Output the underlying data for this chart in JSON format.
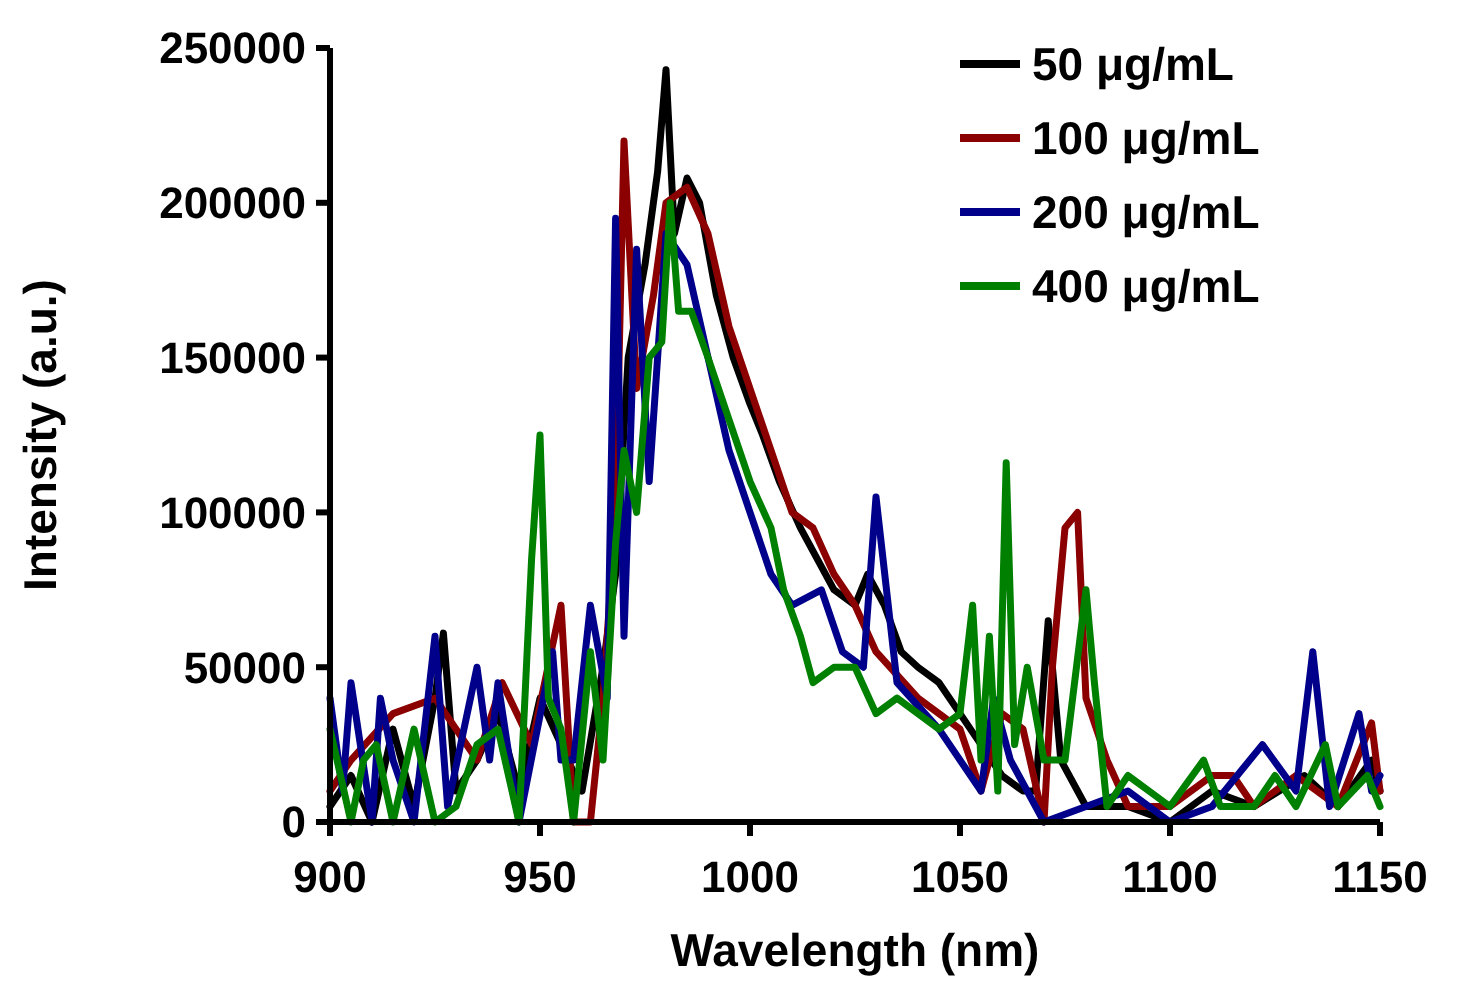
{
  "chart_data": {
    "type": "line",
    "xlabel": "Wavelength (nm)",
    "ylabel": "Intensity (a.u.)",
    "xlim": [
      900,
      1150
    ],
    "xticks": [
      900,
      950,
      1000,
      1050,
      1100,
      1150
    ],
    "ylim": [
      0,
      250000
    ],
    "yticks": [
      0,
      50000,
      100000,
      150000,
      200000,
      250000
    ],
    "legend": "top right",
    "grid": false,
    "marker": "none",
    "line_style": "solid",
    "series": [
      {
        "name": "50 μg/mL",
        "color": "#000000",
        "x": [
          900,
          905,
          910,
          915,
          920,
          925,
          927,
          930,
          935,
          940,
          945,
          950,
          955,
          960,
          965,
          968,
          971,
          975,
          978,
          980,
          982,
          985,
          988,
          992,
          996,
          1000,
          1003,
          1007,
          1012,
          1016,
          1020,
          1025,
          1028,
          1032,
          1036,
          1040,
          1045,
          1050,
          1055,
          1060,
          1065,
          1068,
          1071,
          1074,
          1080,
          1090,
          1100,
          1110,
          1120,
          1132,
          1140,
          1148,
          1150
        ],
        "values": [
          5000,
          15000,
          0,
          30000,
          5000,
          40000,
          61000,
          10000,
          20000,
          35000,
          10000,
          40000,
          25000,
          10000,
          50000,
          80000,
          150000,
          180000,
          210000,
          243000,
          190000,
          208000,
          200000,
          170000,
          150000,
          135000,
          125000,
          110000,
          95000,
          85000,
          75000,
          70000,
          80000,
          70000,
          55000,
          50000,
          45000,
          35000,
          25000,
          15000,
          10000,
          10000,
          65000,
          20000,
          5000,
          5000,
          0,
          10000,
          5000,
          15000,
          5000,
          20000,
          10000
        ]
      },
      {
        "name": "100 μg/mL",
        "color": "#8b0000",
        "x": [
          900,
          905,
          915,
          925,
          935,
          941,
          948,
          955,
          958,
          962,
          965,
          968,
          970,
          973,
          977,
          980,
          985,
          990,
          995,
          1000,
          1005,
          1010,
          1015,
          1020,
          1025,
          1030,
          1040,
          1050,
          1055,
          1060,
          1065,
          1070,
          1072,
          1075,
          1078,
          1080,
          1085,
          1090,
          1100,
          1110,
          1115,
          1120,
          1130,
          1140,
          1148,
          1150
        ],
        "values": [
          10000,
          20000,
          35000,
          40000,
          20000,
          45000,
          25000,
          70000,
          0,
          0,
          40000,
          100000,
          220000,
          140000,
          170000,
          200000,
          205000,
          190000,
          160000,
          140000,
          120000,
          100000,
          95000,
          80000,
          70000,
          55000,
          40000,
          30000,
          10000,
          35000,
          30000,
          0,
          50000,
          95000,
          100000,
          40000,
          20000,
          5000,
          5000,
          15000,
          15000,
          5000,
          15000,
          5000,
          32000,
          10000
        ]
      },
      {
        "name": "200 μg/mL",
        "color": "#00008b",
        "x": [
          900,
          903,
          905,
          910,
          912,
          915,
          920,
          925,
          928,
          935,
          938,
          940,
          945,
          953,
          955,
          958,
          962,
          966,
          968,
          970,
          973,
          976,
          980,
          985,
          990,
          995,
          1000,
          1005,
          1010,
          1017,
          1022,
          1027,
          1030,
          1035,
          1045,
          1055,
          1058,
          1062,
          1070,
          1080,
          1090,
          1100,
          1110,
          1122,
          1130,
          1134,
          1138,
          1145,
          1148,
          1150
        ],
        "values": [
          40000,
          10000,
          45000,
          0,
          40000,
          20000,
          0,
          60000,
          5000,
          50000,
          20000,
          45000,
          0,
          55000,
          20000,
          20000,
          70000,
          40000,
          195000,
          60000,
          185000,
          110000,
          190000,
          180000,
          150000,
          120000,
          100000,
          80000,
          70000,
          75000,
          55000,
          50000,
          105000,
          45000,
          30000,
          10000,
          40000,
          20000,
          0,
          5000,
          10000,
          0,
          5000,
          25000,
          10000,
          55000,
          5000,
          35000,
          10000,
          15000
        ]
      },
      {
        "name": "400 μg/mL",
        "color": "#008000",
        "x": [
          900,
          905,
          908,
          911,
          915,
          920,
          925,
          930,
          935,
          940,
          945,
          948,
          950,
          952,
          955,
          958,
          962,
          965,
          968,
          970,
          973,
          976,
          979,
          981,
          983,
          986,
          990,
          995,
          1000,
          1005,
          1008,
          1012,
          1015,
          1020,
          1025,
          1030,
          1035,
          1040,
          1045,
          1050,
          1053,
          1055,
          1057,
          1059,
          1061,
          1063,
          1066,
          1070,
          1075,
          1080,
          1082,
          1085,
          1090,
          1095,
          1100,
          1108,
          1112,
          1120,
          1125,
          1130,
          1137,
          1140,
          1147,
          1150
        ],
        "values": [
          30000,
          0,
          20000,
          25000,
          0,
          30000,
          0,
          5000,
          25000,
          30000,
          0,
          85000,
          125000,
          40000,
          30000,
          0,
          55000,
          20000,
          90000,
          120000,
          100000,
          150000,
          155000,
          200000,
          165000,
          165000,
          150000,
          130000,
          110000,
          95000,
          75000,
          60000,
          45000,
          50000,
          50000,
          35000,
          40000,
          35000,
          30000,
          35000,
          70000,
          20000,
          60000,
          10000,
          116000,
          25000,
          50000,
          20000,
          20000,
          75000,
          45000,
          5000,
          15000,
          10000,
          5000,
          20000,
          5000,
          5000,
          15000,
          5000,
          25000,
          5000,
          15000,
          5000
        ]
      }
    ]
  }
}
